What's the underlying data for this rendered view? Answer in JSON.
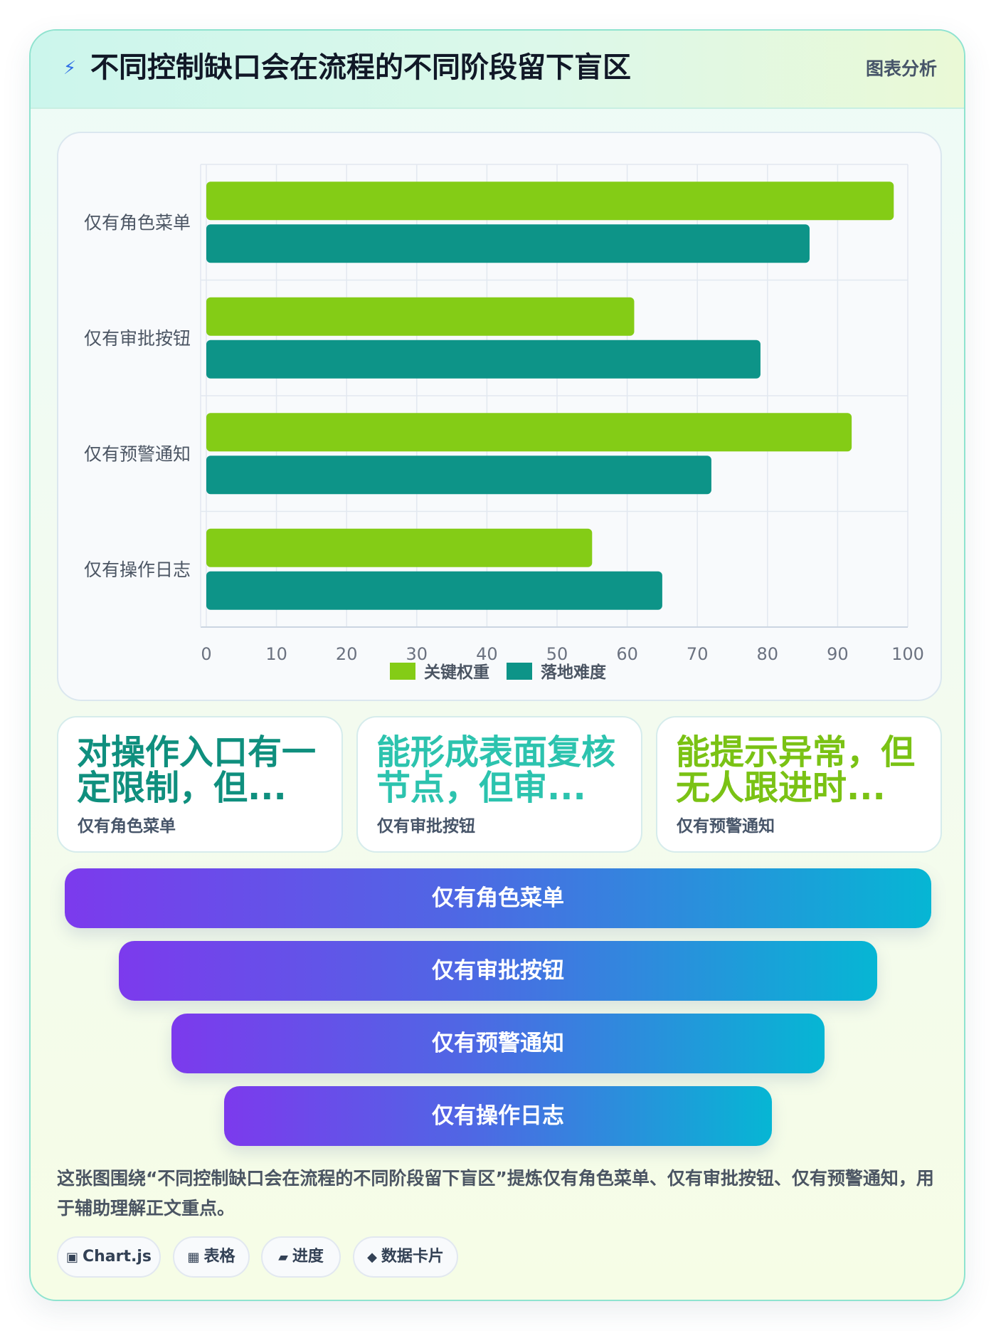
{
  "header": {
    "icon": "lightning-icon",
    "title": "不同控制缺口会在流程的不同阶段留下盲区",
    "tag": "图表分析"
  },
  "chart_data": {
    "type": "bar",
    "orientation": "horizontal",
    "categories": [
      "仅有角色菜单",
      "仅有审批按钮",
      "仅有预警通知",
      "仅有操作日志"
    ],
    "series": [
      {
        "name": "关键权重",
        "values": [
          98,
          61,
          92,
          55
        ],
        "color": "#84cc16"
      },
      {
        "name": "落地难度",
        "values": [
          86,
          79,
          72,
          65
        ],
        "color": "#0d9488"
      }
    ],
    "xlim": [
      0,
      100
    ],
    "xticks": [
      0,
      10,
      20,
      30,
      40,
      50,
      60,
      70,
      80,
      90,
      100
    ],
    "grid": true,
    "legend": "bottom-center"
  },
  "stats": [
    {
      "value": "对操作入口有一定限制，但...",
      "label": "仅有角色菜单",
      "color": "#0f8f7e"
    },
    {
      "value": "能形成表面复核节点，但审...",
      "label": "仅有审批按钮",
      "color": "#2cc3ae"
    },
    {
      "value": "能提示异常，但无人跟进时...",
      "label": "仅有预警通知",
      "color": "#7ac214"
    }
  ],
  "funnel": [
    {
      "label": "仅有角色菜单"
    },
    {
      "label": "仅有审批按钮"
    },
    {
      "label": "仅有预警通知"
    },
    {
      "label": "仅有操作日志"
    }
  ],
  "description": "这张图围绕“不同控制缺口会在流程的不同阶段留下盲区”提炼仅有角色菜单、仅有审批按钮、仅有预警通知，用于辅助理解正文重点。",
  "chips": [
    {
      "icon": "▣",
      "icon_name": "chart-icon",
      "label": "Chart.js"
    },
    {
      "icon": "▦",
      "icon_name": "table-icon",
      "label": "表格"
    },
    {
      "icon": "▰",
      "icon_name": "progress-icon",
      "label": "进度"
    },
    {
      "icon": "◆",
      "icon_name": "data-card-icon",
      "label": "数据卡片"
    }
  ]
}
